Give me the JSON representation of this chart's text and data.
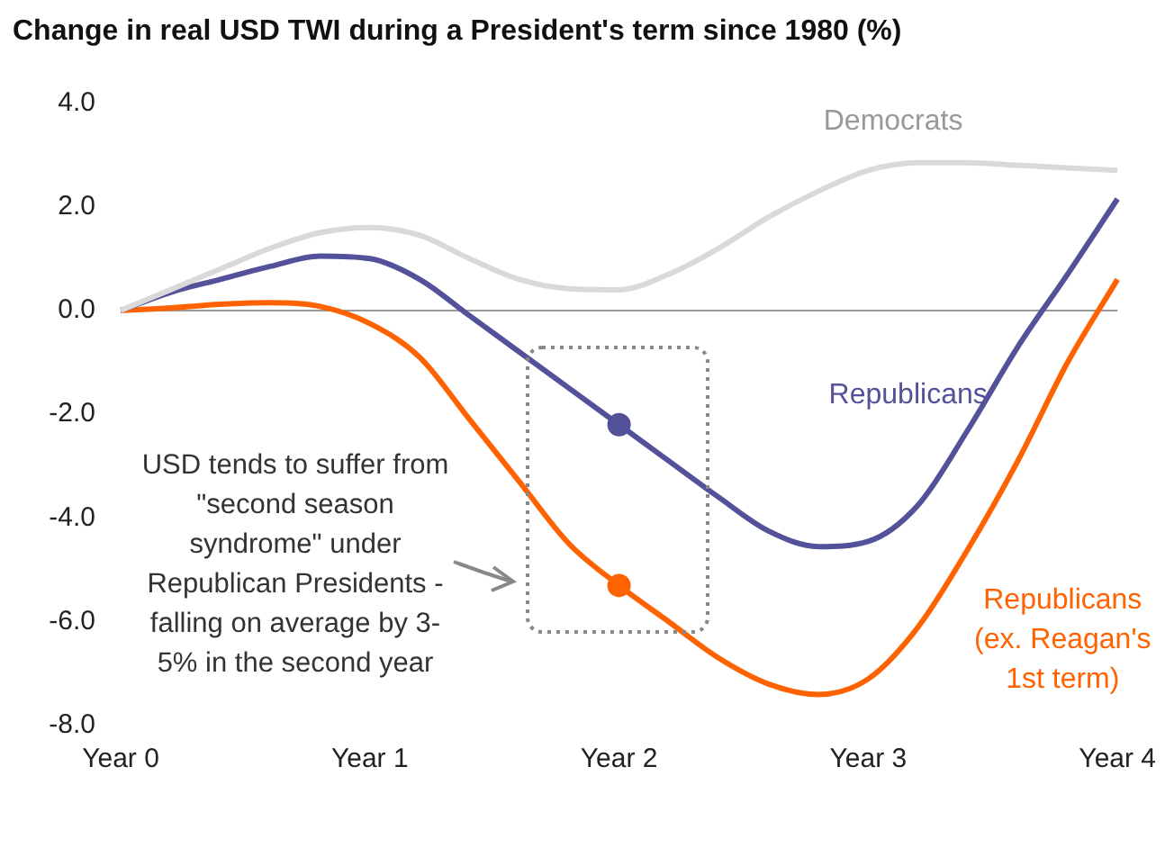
{
  "chart_data": {
    "type": "line",
    "title": "Change in real USD TWI during a President's term since 1980 (%)",
    "categories": [
      "Year 0",
      null,
      null,
      null,
      null,
      "Year 1",
      null,
      null,
      null,
      null,
      "Year 2",
      null,
      null,
      null,
      null,
      "Year 3",
      null,
      null,
      null,
      null,
      "Year 4"
    ],
    "ylim": [
      -8,
      4
    ],
    "yticks": [
      {
        "value": 4,
        "label": "4.0"
      },
      {
        "value": 2,
        "label": "2.0"
      },
      {
        "value": 0,
        "label": "0.0"
      },
      {
        "value": -2,
        "label": "-2.0"
      },
      {
        "value": -4,
        "label": "-4.0"
      },
      {
        "value": -6,
        "label": "-6.0"
      },
      {
        "value": -8,
        "label": "-8.0"
      }
    ],
    "grid": false,
    "legend": false,
    "marker": "none",
    "line_style": "solid",
    "ref_lines": [
      {
        "axis": "y",
        "value": 0,
        "color": "#999999"
      }
    ],
    "annotations": [
      "USD tends to suffer from \"second season syndrome\" under Republican Presidents - falling on average by 3-5% in the second year"
    ],
    "series": [
      {
        "name": "Democrats",
        "color": "#d9d9d9",
        "values": [
          0,
          0.4,
          0.8,
          1.2,
          1.5,
          1.6,
          1.45,
          1.0,
          0.6,
          0.42,
          0.4,
          0.7,
          1.2,
          1.8,
          2.3,
          2.7,
          2.85,
          2.85,
          2.8,
          2.75,
          2.7
        ]
      },
      {
        "name": "Republicans",
        "color": "#525199",
        "values": [
          0,
          0.35,
          0.6,
          0.85,
          1.05,
          1.0,
          0.6,
          -0.1,
          -0.8,
          -1.5,
          -2.2,
          -2.9,
          -3.6,
          -4.25,
          -4.55,
          -4.45,
          -3.75,
          -2.3,
          -0.7,
          0.7,
          2.15
        ]
      },
      {
        "name": "Republicans (ex. Reagan's 1st term)",
        "color": "#ff6200",
        "values": [
          0,
          0.05,
          0.12,
          0.15,
          0.08,
          -0.25,
          -0.9,
          -2.1,
          -3.3,
          -4.5,
          -5.3,
          -6.0,
          -6.7,
          -7.2,
          -7.4,
          -7.1,
          -6.1,
          -4.6,
          -2.9,
          -1.0,
          0.6
        ]
      },
      {
        "type": "scatter",
        "marker": "circle",
        "color": "#525199",
        "x": [
          "Year 2"
        ],
        "values": [
          -2.2
        ]
      },
      {
        "type": "scatter",
        "marker": "circle",
        "color": "#ff6200",
        "x": [
          "Year 2"
        ],
        "values": [
          -5.3
        ]
      }
    ]
  }
}
